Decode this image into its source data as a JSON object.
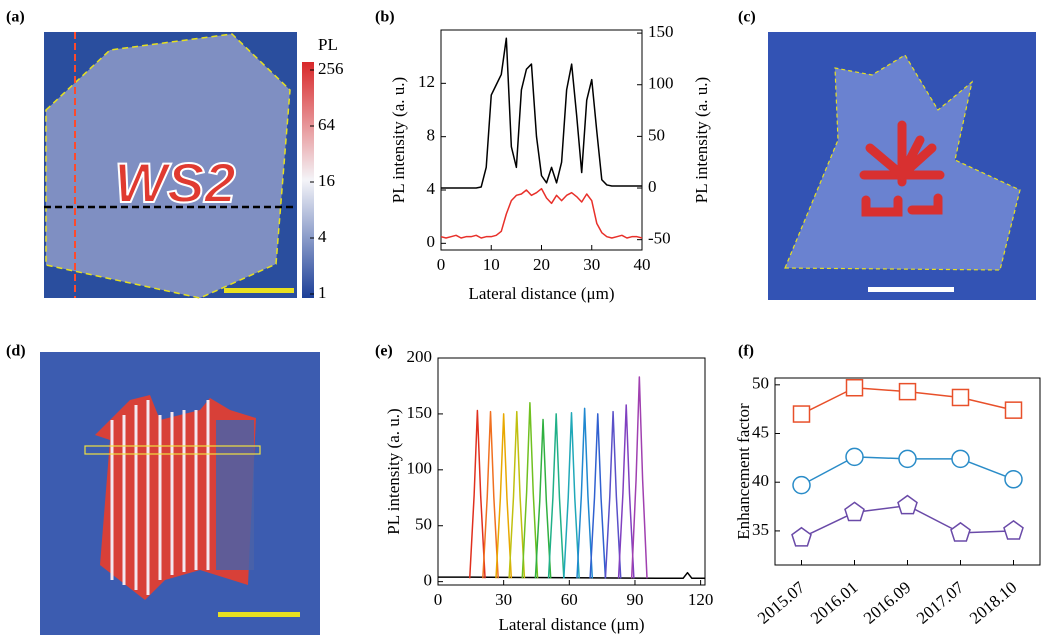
{
  "chart_data": [
    {
      "type": "image",
      "label": "(a)",
      "annotation": "WS2",
      "colorbar_title": "PL",
      "clim": [
        1,
        256
      ],
      "clog": true,
      "cticks": [
        1,
        4,
        16,
        64,
        256
      ]
    },
    {
      "type": "line",
      "label": "(b)",
      "xlabel": "Lateral distance (μm)",
      "ylabel": "PL intensity (a. u.)",
      "y2label": "PL intensity (a. u.)",
      "xlim": [
        0,
        40
      ],
      "xticks": [
        0,
        10,
        20,
        30,
        40
      ],
      "ylim": [
        -0.5,
        16
      ],
      "yticks": [
        0,
        4,
        8,
        12
      ],
      "y2lim": [
        -60,
        153
      ],
      "y2ticks": [
        -50,
        0,
        50,
        100,
        150
      ],
      "x": [
        0,
        1,
        2,
        3,
        4,
        5,
        6,
        7,
        8,
        9,
        10,
        11,
        12,
        13,
        14,
        15,
        16,
        17,
        18,
        19,
        20,
        21,
        22,
        23,
        24,
        25,
        26,
        27,
        28,
        29,
        30,
        31,
        32,
        33,
        34,
        35,
        36,
        37,
        38,
        39,
        40
      ],
      "series": [
        {
          "color": "#e8302a",
          "values": [
            0.5,
            0.4,
            0.5,
            0.6,
            0.4,
            0.5,
            0.5,
            0.6,
            0.4,
            0.5,
            0.5,
            0.6,
            0.9,
            2.2,
            3.2,
            3.6,
            3.7,
            4.0,
            3.6,
            3.8,
            4.1,
            3.4,
            3.0,
            3.6,
            3.2,
            3.6,
            3.8,
            3.5,
            3.1,
            3.7,
            3.2,
            1.5,
            0.8,
            0.5,
            0.4,
            0.5,
            0.6,
            0.4,
            0.5,
            0.5,
            0.4
          ]
        },
        {
          "color": "#000000",
          "axis": "y2",
          "values": [
            0,
            0,
            0,
            0,
            0,
            0,
            0,
            0,
            1,
            20,
            90,
            100,
            110,
            145,
            40,
            20,
            95,
            115,
            120,
            50,
            12,
            5,
            20,
            5,
            25,
            95,
            120,
            70,
            15,
            85,
            105,
            55,
            8,
            3,
            2,
            2,
            2,
            2,
            2,
            2,
            2
          ]
        }
      ]
    },
    {
      "type": "image",
      "label": "(c)"
    },
    {
      "type": "image",
      "label": "(d)"
    },
    {
      "type": "line",
      "label": "(e)",
      "xlabel": "Lateral distance (μm)",
      "ylabel": "PL intensity (a. u.)",
      "xlim": [
        0,
        122
      ],
      "xticks": [
        0,
        30,
        60,
        90,
        120
      ],
      "ylim": [
        -3,
        200
      ],
      "yticks": [
        0,
        50,
        100,
        150,
        200
      ],
      "series": [
        {
          "color": "#000000",
          "x": [
            0,
            15,
            100,
            112,
            114,
            116,
            122
          ],
          "values": [
            4,
            4,
            3,
            3,
            8,
            3,
            3
          ]
        },
        {
          "color": "#e0301e",
          "x": [
            14.5,
            16.5,
            18,
            19.5,
            21.5
          ],
          "values": [
            3,
            77,
            153,
            77,
            3
          ]
        },
        {
          "color": "#f07020",
          "x": [
            20.5,
            22.5,
            24,
            25.5,
            27.5
          ],
          "values": [
            3,
            76,
            152,
            76,
            3
          ]
        },
        {
          "color": "#e8a800",
          "x": [
            26.5,
            28.5,
            30,
            31.5,
            33.5
          ],
          "values": [
            3,
            75,
            150,
            75,
            3
          ]
        },
        {
          "color": "#c0c010",
          "x": [
            32.5,
            34.5,
            36,
            37.5,
            39.5
          ],
          "values": [
            3,
            76,
            152,
            76,
            3
          ]
        },
        {
          "color": "#70c020",
          "x": [
            38.5,
            40.5,
            42,
            43.5,
            45.5
          ],
          "values": [
            3,
            80,
            160,
            80,
            3
          ]
        },
        {
          "color": "#30b040",
          "x": [
            44.5,
            46.5,
            48,
            49.5,
            51.5
          ],
          "values": [
            3,
            72,
            145,
            72,
            3
          ]
        },
        {
          "color": "#20b088",
          "x": [
            50.5,
            52.5,
            54,
            55.5,
            57.5
          ],
          "values": [
            3,
            75,
            150,
            75,
            3
          ]
        },
        {
          "color": "#20a8b8",
          "x": [
            57.5,
            59.5,
            61,
            62.5,
            64.5
          ],
          "values": [
            3,
            75,
            151,
            75,
            3
          ]
        },
        {
          "color": "#2088d0",
          "x": [
            63.5,
            65.5,
            67,
            68.5,
            70.5
          ],
          "values": [
            3,
            77,
            155,
            77,
            3
          ]
        },
        {
          "color": "#3060d0",
          "x": [
            69.5,
            71.5,
            73,
            74.5,
            76.5
          ],
          "values": [
            3,
            75,
            150,
            75,
            3
          ]
        },
        {
          "color": "#5a50c8",
          "x": [
            76.5,
            78.5,
            80,
            81.5,
            83.5
          ],
          "values": [
            3,
            76,
            152,
            76,
            3
          ]
        },
        {
          "color": "#8040c0",
          "x": [
            82.5,
            84.5,
            86,
            87.5,
            89.5
          ],
          "values": [
            3,
            79,
            158,
            79,
            3
          ]
        },
        {
          "color": "#a040b0",
          "x": [
            88.5,
            90.5,
            92,
            93.5,
            95.5
          ],
          "values": [
            3,
            91,
            183,
            91,
            3
          ]
        }
      ]
    },
    {
      "type": "line",
      "label": "(f)",
      "ylabel": "Enhancement factor",
      "categories": [
        "2015.07",
        "2016.01",
        "2016.09",
        "2017.07",
        "2018.10"
      ],
      "ylim": [
        31.5,
        50.7
      ],
      "yticks": [
        35,
        40,
        45,
        50
      ],
      "series": [
        {
          "color": "#e8502a",
          "marker": "square",
          "values": [
            47,
            49.7,
            49.3,
            48.7,
            47.4
          ]
        },
        {
          "color": "#2a8cc8",
          "marker": "circle",
          "values": [
            39.7,
            42.6,
            42.4,
            42.4,
            40.3
          ]
        },
        {
          "color": "#6a4aa8",
          "marker": "pentagon",
          "values": [
            34.3,
            36.9,
            37.6,
            34.8,
            35
          ]
        }
      ]
    }
  ]
}
